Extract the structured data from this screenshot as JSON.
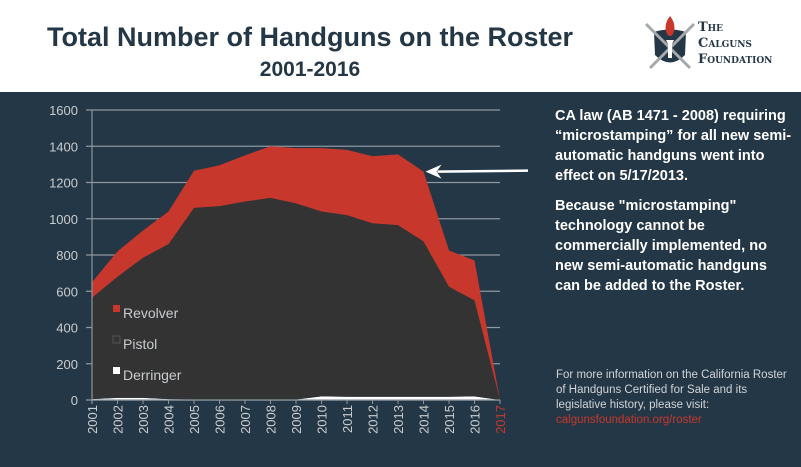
{
  "header": {
    "title": "Total Number of Handguns on the Roster",
    "subtitle": "2001-2016"
  },
  "logo": {
    "line1": "The",
    "line2": "Calguns",
    "line3": "Foundation"
  },
  "notes": {
    "paragraph1": "CA law (AB 1471 - 2008) requiring “microstamping” for all new semi-automatic handguns went into effect on 5/17/2013.",
    "paragraph2": "Because \"microstamping\" technology cannot be commercially implemented, no new semi-automatic handguns can be added to the Roster.",
    "more_info": "For more information on the California Roster of Handguns Certified for Sale and its legislative history, please visit:",
    "link": "calgunsfoundation.org/roster"
  },
  "colors": {
    "background": "#243746",
    "revolver": "#c8372b",
    "pistol": "#333333",
    "derringer": "#ffffff",
    "highlight_year": "#c8372b"
  },
  "chart_data": {
    "type": "area",
    "stacked": true,
    "categories": [
      "2001",
      "2002",
      "2003",
      "2004",
      "2005",
      "2006",
      "2007",
      "2008",
      "2009",
      "2010",
      "2011",
      "2012",
      "2013",
      "2014",
      "2015",
      "2016",
      "2017"
    ],
    "highlighted_category": "2017",
    "ylim": [
      0,
      1600
    ],
    "yticks": [
      "0",
      "200",
      "400",
      "600",
      "800",
      "1000",
      "1200",
      "1400",
      "1600"
    ],
    "grid": true,
    "legend_position": "bottom-left",
    "series": [
      {
        "name": "Derringer",
        "values": [
          5,
          12,
          12,
          5,
          3,
          3,
          3,
          3,
          3,
          20,
          18,
          18,
          18,
          18,
          18,
          20,
          0
        ]
      },
      {
        "name": "Pistol",
        "values": [
          560,
          668,
          773,
          855,
          1057,
          1067,
          1092,
          1112,
          1082,
          1020,
          1002,
          957,
          947,
          857,
          607,
          530,
          0
        ]
      },
      {
        "name": "Revolver",
        "values": [
          85,
          140,
          150,
          180,
          205,
          225,
          255,
          285,
          305,
          350,
          360,
          370,
          390,
          385,
          200,
          220,
          0
        ]
      }
    ],
    "legend_order": [
      "Revolver",
      "Pistol",
      "Derringer"
    ],
    "annotation": {
      "type": "arrow",
      "points_to": "2014"
    }
  }
}
